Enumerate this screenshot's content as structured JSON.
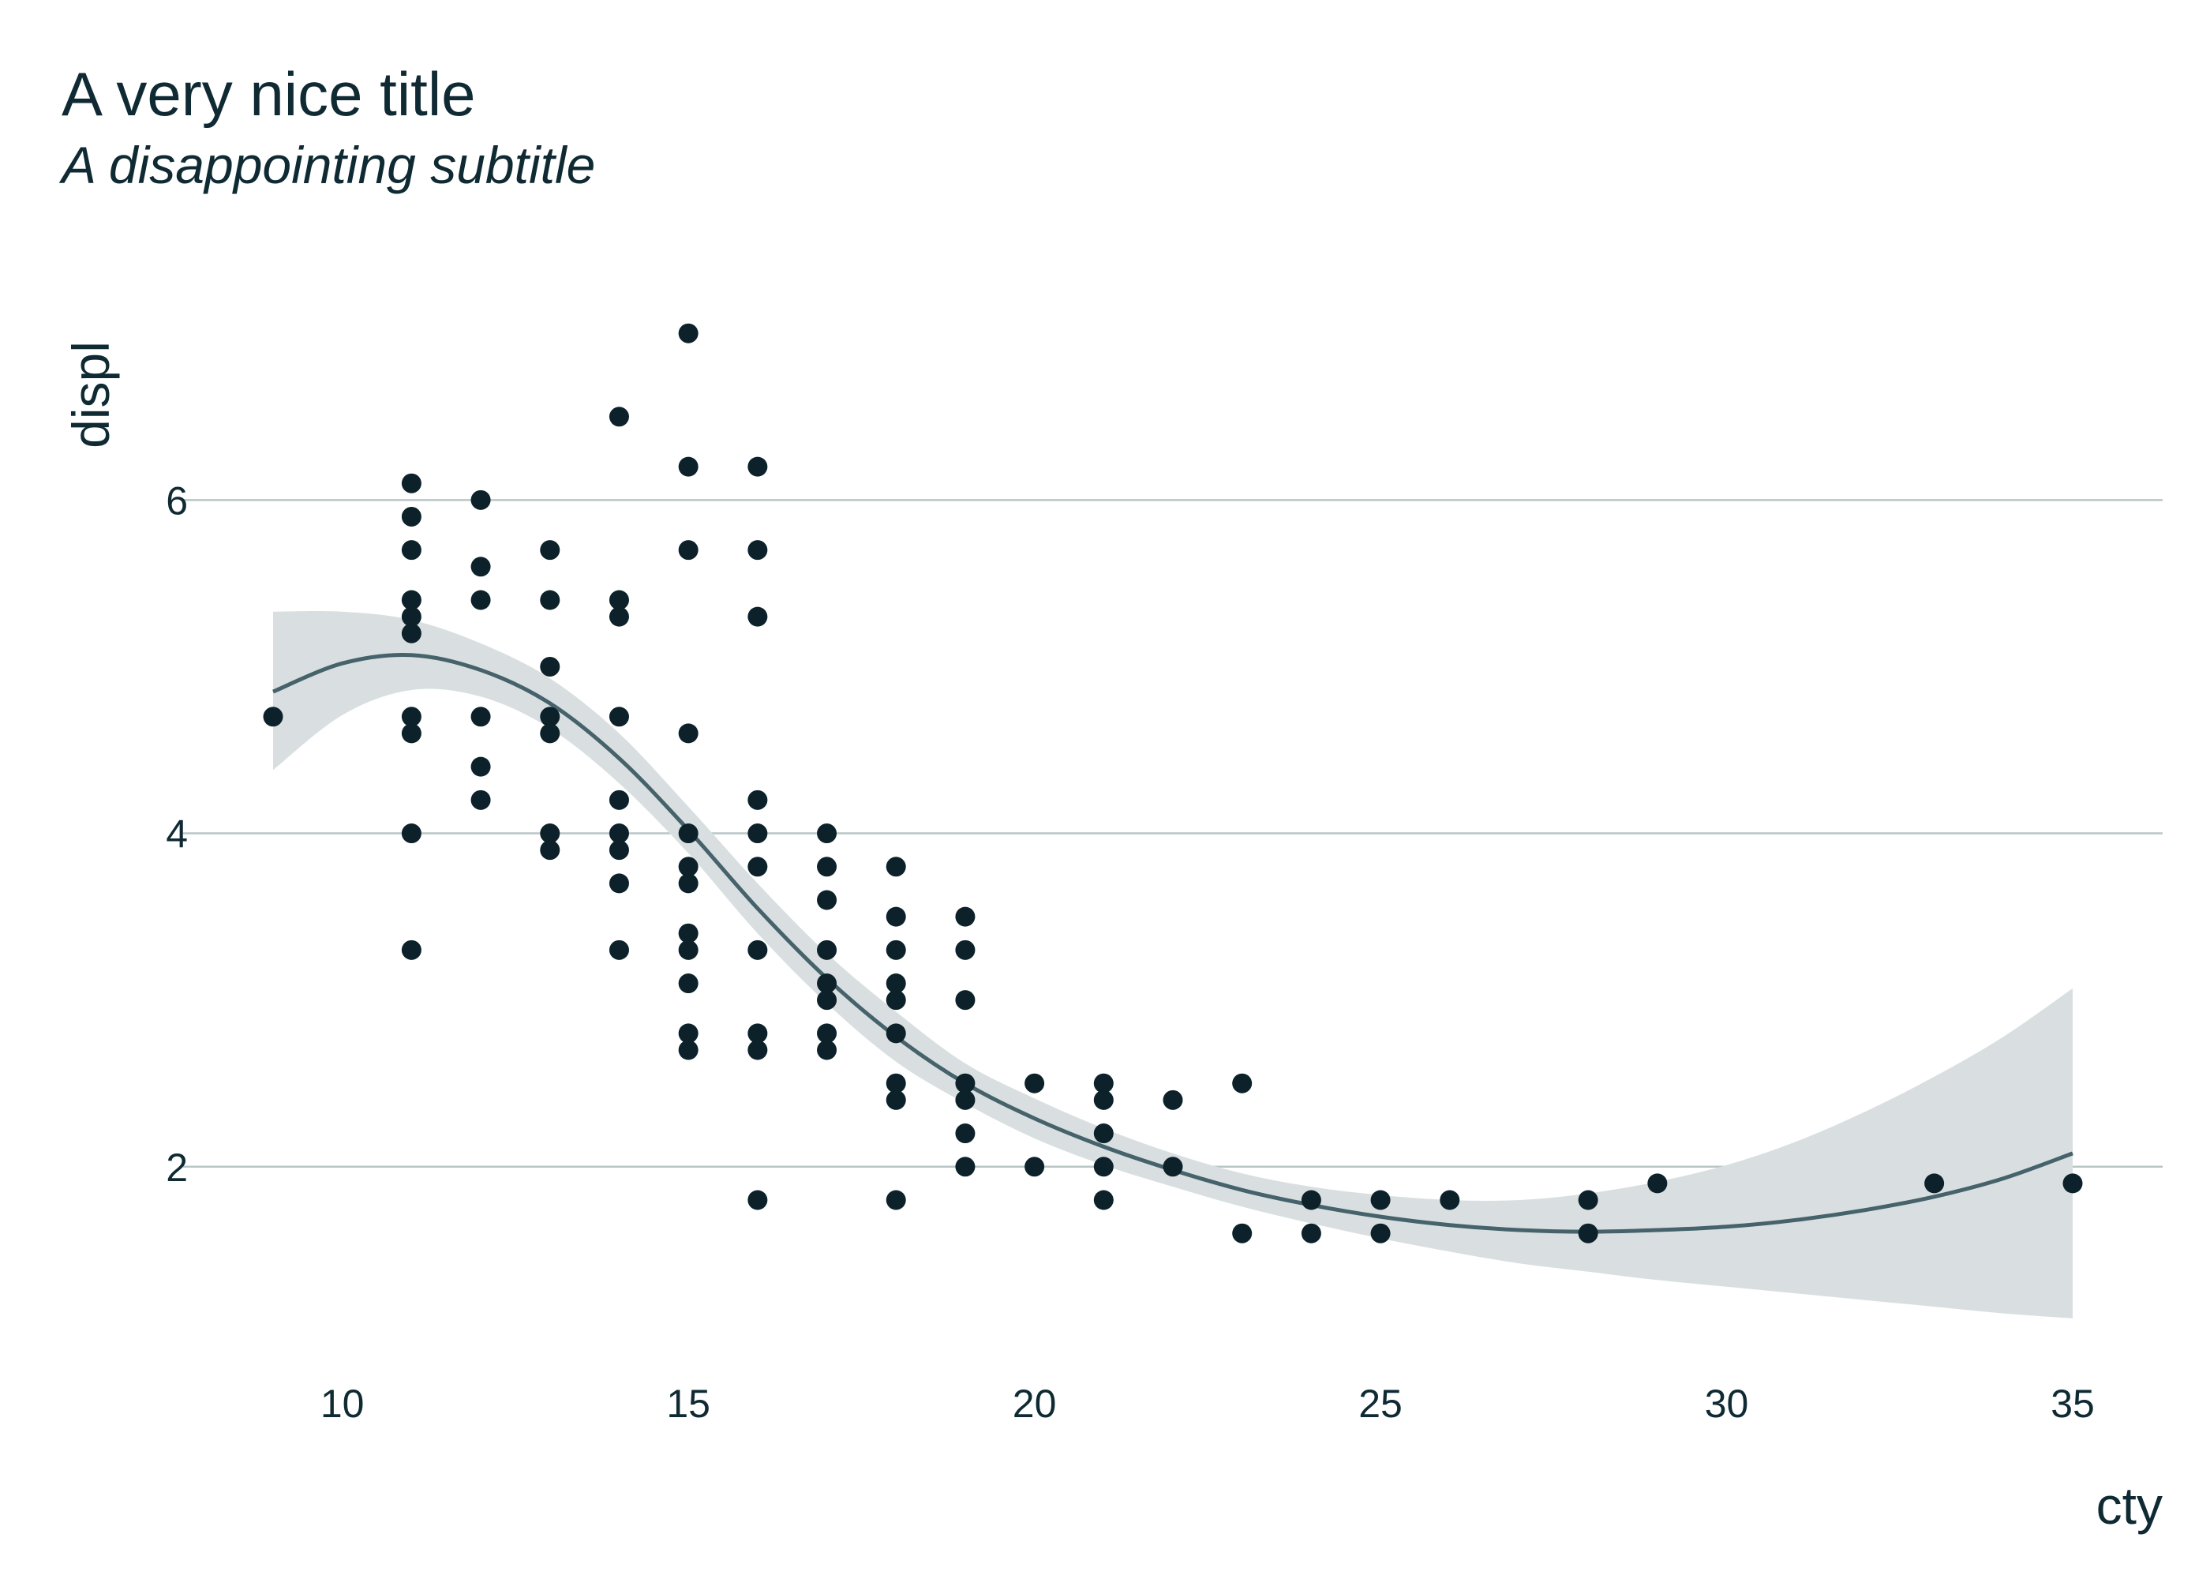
{
  "chart_data": {
    "type": "scatter",
    "title": "A very nice title",
    "subtitle": "A disappointing subtitle",
    "xlabel": "cty",
    "ylabel": "displ",
    "xlim": [
      7.7,
      36.3
    ],
    "ylim": [
      0.9,
      7.2
    ],
    "x_ticks": [
      10,
      15,
      20,
      25,
      30,
      35
    ],
    "y_ticks": [
      2,
      4,
      6
    ],
    "grid": "horizontal major",
    "legend": "none",
    "colors": {
      "points": "#0c2129",
      "smooth_line": "#46626b",
      "ribbon": "#d9dfe0",
      "grid": "#b9c6c6",
      "text": "#0f2a33"
    },
    "points": [
      [
        9,
        4.7
      ],
      [
        11,
        6.1
      ],
      [
        11,
        5.9
      ],
      [
        11,
        5.7
      ],
      [
        11,
        5.4
      ],
      [
        11,
        5.3
      ],
      [
        11,
        5.2
      ],
      [
        11,
        4.7
      ],
      [
        11,
        4.6
      ],
      [
        11,
        4.0
      ],
      [
        11,
        3.3
      ],
      [
        12,
        6.0
      ],
      [
        12,
        5.6
      ],
      [
        12,
        5.4
      ],
      [
        12,
        4.7
      ],
      [
        12,
        4.4
      ],
      [
        12,
        4.2
      ],
      [
        13,
        5.7
      ],
      [
        13,
        5.4
      ],
      [
        13,
        5.0
      ],
      [
        13,
        4.7
      ],
      [
        13,
        4.6
      ],
      [
        13,
        4.0
      ],
      [
        13,
        3.9
      ],
      [
        14,
        6.5
      ],
      [
        14,
        5.4
      ],
      [
        14,
        5.3
      ],
      [
        14,
        4.7
      ],
      [
        14,
        4.2
      ],
      [
        14,
        4.0
      ],
      [
        14,
        3.9
      ],
      [
        14,
        3.7
      ],
      [
        14,
        3.3
      ],
      [
        15,
        7.0
      ],
      [
        15,
        6.2
      ],
      [
        15,
        5.7
      ],
      [
        15,
        4.6
      ],
      [
        15,
        4.0
      ],
      [
        15,
        3.8
      ],
      [
        15,
        3.7
      ],
      [
        15,
        3.4
      ],
      [
        15,
        3.3
      ],
      [
        15,
        3.1
      ],
      [
        15,
        2.8
      ],
      [
        15,
        2.7
      ],
      [
        16,
        6.2
      ],
      [
        16,
        5.7
      ],
      [
        16,
        5.3
      ],
      [
        16,
        4.2
      ],
      [
        16,
        4.0
      ],
      [
        16,
        3.8
      ],
      [
        16,
        3.3
      ],
      [
        16,
        2.8
      ],
      [
        16,
        2.7
      ],
      [
        16,
        1.8
      ],
      [
        17,
        4.0
      ],
      [
        17,
        3.8
      ],
      [
        17,
        3.6
      ],
      [
        17,
        3.3
      ],
      [
        17,
        3.1
      ],
      [
        17,
        3.0
      ],
      [
        17,
        2.8
      ],
      [
        17,
        2.7
      ],
      [
        18,
        3.8
      ],
      [
        18,
        3.5
      ],
      [
        18,
        3.3
      ],
      [
        18,
        3.1
      ],
      [
        18,
        3.0
      ],
      [
        18,
        2.8
      ],
      [
        18,
        2.5
      ],
      [
        18,
        2.4
      ],
      [
        18,
        1.8
      ],
      [
        19,
        3.5
      ],
      [
        19,
        3.3
      ],
      [
        19,
        3.0
      ],
      [
        19,
        2.5
      ],
      [
        19,
        2.4
      ],
      [
        19,
        2.2
      ],
      [
        19,
        2.0
      ],
      [
        20,
        2.5
      ],
      [
        20,
        2.0
      ],
      [
        21,
        2.5
      ],
      [
        21,
        2.4
      ],
      [
        21,
        2.2
      ],
      [
        21,
        2.0
      ],
      [
        21,
        1.8
      ],
      [
        22,
        2.4
      ],
      [
        22,
        2.0
      ],
      [
        23,
        2.5
      ],
      [
        23,
        1.6
      ],
      [
        24,
        1.8
      ],
      [
        24,
        1.6
      ],
      [
        25,
        1.8
      ],
      [
        25,
        1.6
      ],
      [
        26,
        1.8
      ],
      [
        28,
        1.8
      ],
      [
        28,
        1.6
      ],
      [
        29,
        1.9
      ],
      [
        33,
        1.9
      ],
      [
        35,
        1.9
      ]
    ],
    "smooth": {
      "x": [
        9,
        10,
        11,
        12,
        13,
        14,
        15,
        16,
        17,
        18,
        19,
        20,
        21,
        22,
        23,
        24,
        25,
        26,
        27,
        28,
        29,
        30,
        31,
        32,
        33,
        34,
        35
      ],
      "y": [
        4.85,
        5.02,
        5.07,
        4.98,
        4.78,
        4.45,
        4.02,
        3.55,
        3.13,
        2.78,
        2.5,
        2.29,
        2.12,
        1.98,
        1.86,
        1.77,
        1.7,
        1.65,
        1.62,
        1.61,
        1.62,
        1.64,
        1.68,
        1.74,
        1.82,
        1.93,
        2.08
      ],
      "upper": [
        5.33,
        5.33,
        5.28,
        5.14,
        4.93,
        4.6,
        4.16,
        3.7,
        3.28,
        2.93,
        2.62,
        2.41,
        2.23,
        2.08,
        1.96,
        1.88,
        1.83,
        1.8,
        1.8,
        1.84,
        1.91,
        2.01,
        2.15,
        2.33,
        2.54,
        2.78,
        3.07
      ],
      "lower": [
        4.38,
        4.71,
        4.86,
        4.82,
        4.63,
        4.3,
        3.88,
        3.4,
        2.98,
        2.63,
        2.38,
        2.17,
        2.01,
        1.88,
        1.76,
        1.66,
        1.57,
        1.49,
        1.42,
        1.37,
        1.32,
        1.28,
        1.24,
        1.2,
        1.16,
        1.12,
        1.09
      ]
    }
  }
}
